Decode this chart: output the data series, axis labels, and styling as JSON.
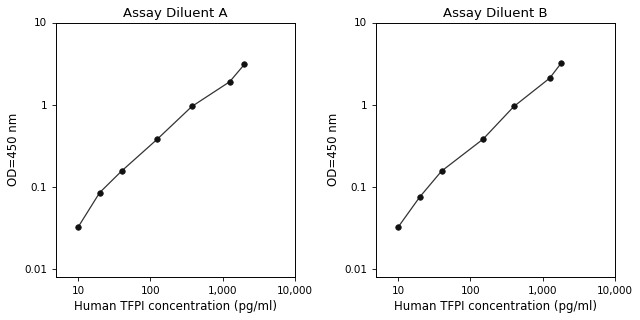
{
  "title_A": "Assay Diluent A",
  "title_B": "Assay Diluent B",
  "xlabel": "Human TFPI concentration (pg/ml)",
  "ylabel": "OD=450 nm",
  "x_A": [
    10,
    20,
    40,
    125,
    375,
    1250,
    2000
  ],
  "y_A": [
    0.032,
    0.085,
    0.155,
    0.38,
    0.95,
    1.9,
    3.1
  ],
  "x_B": [
    10,
    20,
    40,
    150,
    400,
    1250,
    1800
  ],
  "y_B": [
    0.032,
    0.075,
    0.155,
    0.38,
    0.95,
    2.1,
    3.2
  ],
  "xlim": [
    5,
    10000
  ],
  "ylim": [
    0.008,
    10
  ],
  "xticks": [
    10,
    100,
    1000,
    10000
  ],
  "xtick_labels": [
    "10",
    "100",
    "1,000",
    "10,000"
  ],
  "yticks": [
    0.01,
    0.1,
    1,
    10
  ],
  "ytick_labels": [
    "0.01",
    "0.1",
    "1",
    "10"
  ],
  "line_color": "#333333",
  "marker_color": "#111111",
  "bg_color": "#ffffff",
  "plot_bg": "#ffffff",
  "title_fontsize": 9.5,
  "label_fontsize": 8.5,
  "tick_fontsize": 7.5
}
